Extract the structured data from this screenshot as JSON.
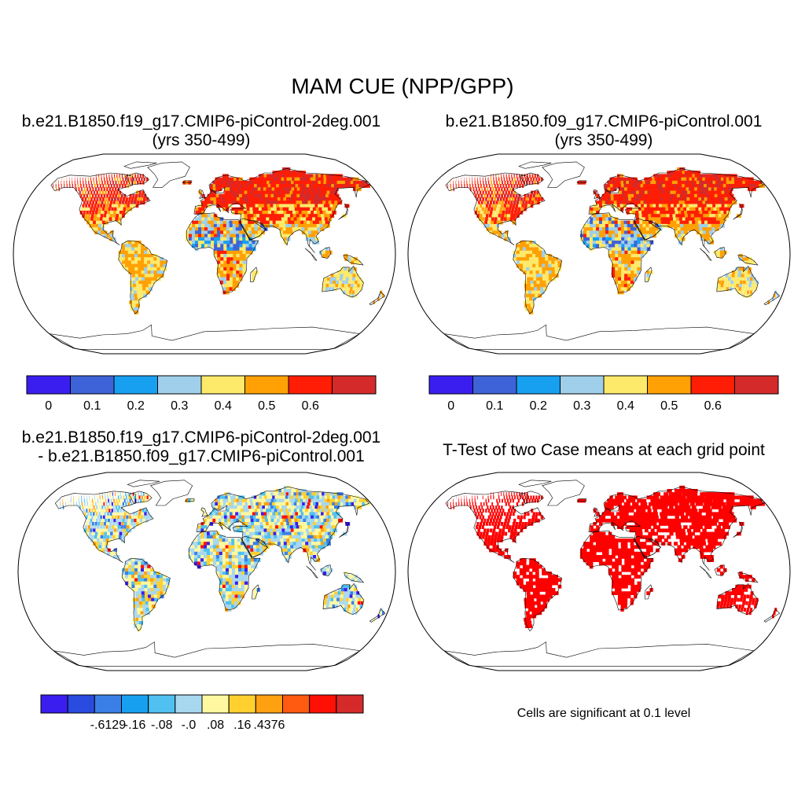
{
  "figure": {
    "title": "MAM CUE (NPP/GPP)",
    "significance_note": "Cells are significant at 0.1 level"
  },
  "panels": [
    {
      "id": "case1",
      "title_line1": "b.e21.B1850.f19_g17.CMIP6-piControl-2deg.001",
      "title_line2": "(yrs 350-499)",
      "colorbar": {
        "colors": [
          "#3a1ef0",
          "#3e63d8",
          "#17a0f0",
          "#9fcfea",
          "#fde96a",
          "#ffa105",
          "#ff1e05",
          "#d42a2a"
        ],
        "tick_labels": [
          "0",
          "0.1",
          "0.2",
          "0.3",
          "0.4",
          "0.5",
          "0.6"
        ]
      }
    },
    {
      "id": "case2",
      "title_line1": "b.e21.B1850.f09_g17.CMIP6-piControl.001",
      "title_line2": "(yrs 350-499)",
      "colorbar": {
        "colors": [
          "#3a1ef0",
          "#3e63d8",
          "#17a0f0",
          "#9fcfea",
          "#fde96a",
          "#ffa105",
          "#ff1e05",
          "#d42a2a"
        ],
        "tick_labels": [
          "0",
          "0.1",
          "0.2",
          "0.3",
          "0.4",
          "0.5",
          "0.6"
        ]
      }
    },
    {
      "id": "difference",
      "title_line1": "b.e21.B1850.f19_g17.CMIP6-piControl-2deg.001",
      "title_line2": "- b.e21.B1850.f09_g17.CMIP6-piControl.001",
      "colorbar": {
        "colors": [
          "#3a1ef0",
          "#2a4be0",
          "#3a7fe8",
          "#18a0f0",
          "#50c0f0",
          "#a8d8f0",
          "#fff8a0",
          "#ffd030",
          "#ffa010",
          "#ff5a10",
          "#ff1005",
          "#d42a2a"
        ],
        "tick_labels": [
          "-.6129",
          "-.16",
          "-.08",
          "-.0",
          ".08",
          ".16",
          ".4376"
        ]
      }
    },
    {
      "id": "ttest",
      "title_line1": "T-Test of two Case means at each grid point",
      "significant_color": "#ff0000"
    }
  ]
}
